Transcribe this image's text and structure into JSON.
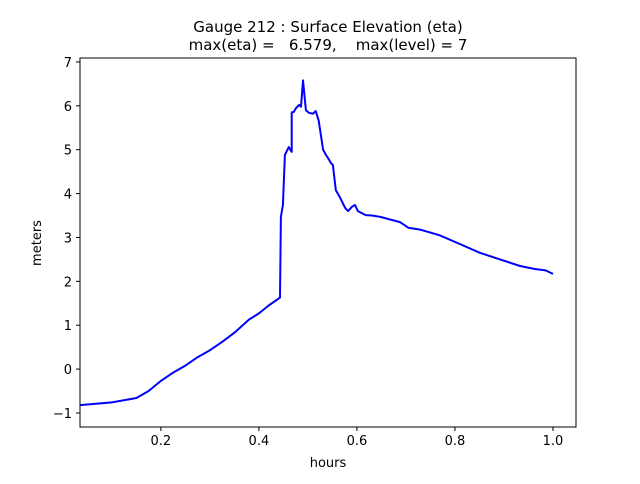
{
  "chart_data": {
    "type": "line",
    "title": "Gauge 212 : Surface Elevation (eta)",
    "subtitle": "max(eta) =   6.579,    max(level) = 7",
    "xlabel": "hours",
    "ylabel": "meters",
    "xlim": [
      0.035,
      1.047
    ],
    "ylim": [
      -1.32,
      7.09
    ],
    "xticks": [
      0.2,
      0.4,
      0.6,
      0.8,
      1.0
    ],
    "xtick_labels": [
      "0.2",
      "0.4",
      "0.6",
      "0.8",
      "1.0"
    ],
    "yticks": [
      -1,
      0,
      1,
      2,
      3,
      4,
      5,
      6,
      7
    ],
    "ytick_labels": [
      "−1",
      "0",
      "1",
      "2",
      "3",
      "4",
      "5",
      "6",
      "7"
    ],
    "grid": false,
    "series": [
      {
        "name": "eta",
        "color": "#0000ff",
        "x": [
          0.035,
          0.1,
          0.15,
          0.175,
          0.2,
          0.225,
          0.25,
          0.275,
          0.3,
          0.325,
          0.35,
          0.38,
          0.4,
          0.42,
          0.443,
          0.445,
          0.449,
          0.453,
          0.461,
          0.467,
          0.467,
          0.471,
          0.476,
          0.482,
          0.486,
          0.49,
          0.496,
          0.502,
          0.51,
          0.516,
          0.522,
          0.531,
          0.537,
          0.541,
          0.547,
          0.551,
          0.557,
          0.565,
          0.576,
          0.582,
          0.59,
          0.596,
          0.602,
          0.618,
          0.631,
          0.647,
          0.688,
          0.705,
          0.729,
          0.769,
          0.81,
          0.851,
          0.892,
          0.933,
          0.963,
          0.985,
          1.0
        ],
        "y": [
          -0.82,
          -0.76,
          -0.66,
          -0.5,
          -0.27,
          -0.08,
          0.08,
          0.27,
          0.43,
          0.62,
          0.83,
          1.13,
          1.27,
          1.45,
          1.63,
          3.47,
          3.74,
          4.88,
          5.06,
          4.95,
          5.85,
          5.86,
          5.95,
          6.02,
          5.98,
          6.579,
          5.9,
          5.84,
          5.82,
          5.88,
          5.66,
          5.0,
          4.88,
          4.81,
          4.7,
          4.65,
          4.08,
          3.92,
          3.67,
          3.6,
          3.7,
          3.74,
          3.6,
          3.51,
          3.5,
          3.47,
          3.35,
          3.22,
          3.18,
          3.05,
          2.85,
          2.65,
          2.5,
          2.35,
          2.28,
          2.25,
          2.17
        ]
      }
    ]
  }
}
